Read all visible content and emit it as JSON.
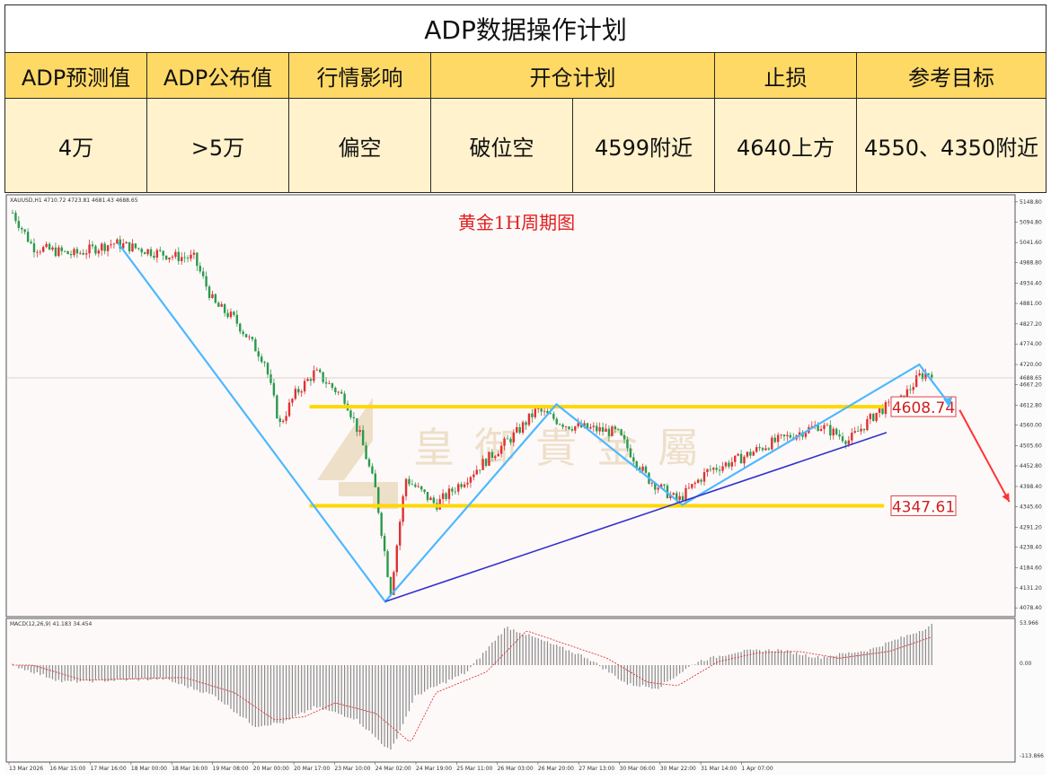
{
  "table": {
    "title": "ADP数据操作计划",
    "headers": [
      "ADP预测值",
      "ADP公布值",
      "行情影响",
      "开仓计划",
      "止损",
      "参考目标"
    ],
    "values": {
      "forecast": "4万",
      "actual": ">5万",
      "impact": "偏空",
      "entry_type": "破位空",
      "entry_price": "4599附近",
      "stop_loss": "4640上方",
      "target": "4550、4350附近"
    }
  },
  "chart_data": {
    "type": "candlestick",
    "symbol_line": "XAUUSD,H1  4710.72 4723.81 4681.43 4688.65",
    "title": "黄金1H周期图",
    "watermark": "皇御貴金屬",
    "current_price_label": "4688.65",
    "y_ticks": [
      "5148.80",
      "5094.80",
      "5041.60",
      "4988.80",
      "4934.40",
      "4881.00",
      "4827.20",
      "4774.00",
      "4720.00",
      "4667.20",
      "4612.80",
      "4560.00",
      "4505.60",
      "4452.80",
      "4398.40",
      "4345.60",
      "4291.20",
      "4238.40",
      "4184.60",
      "4131.20",
      "4078.40"
    ],
    "x_ticks": [
      "13 Mar 2026",
      "16 Mar 15:00",
      "17 Mar 16:00",
      "18 Mar 00:00",
      "18 Mar 16:00",
      "19 Mar 08:00",
      "20 Mar 00:00",
      "20 Mar 17:00",
      "23 Mar 10:00",
      "24 Mar 02:00",
      "24 Mar 19:00",
      "25 Mar 11:00",
      "26 Mar 03:00",
      "26 Mar 20:00",
      "27 Mar 13:00",
      "30 Mar 06:00",
      "30 Mar 22:00",
      "31 Mar 14:00",
      "1 Apr 07:00"
    ],
    "levels": [
      {
        "label": "4608.74",
        "value": 4608.74,
        "color": "#ffd700"
      },
      {
        "label": "4347.61",
        "value": 4347.61,
        "color": "#ffd700"
      }
    ],
    "zigzag": [
      {
        "t": 0.11,
        "price": 5040
      },
      {
        "t": 0.375,
        "price": 4095
      },
      {
        "t": 0.545,
        "price": 4615
      },
      {
        "t": 0.67,
        "price": 4350
      },
      {
        "t": 0.905,
        "price": 4720
      },
      {
        "t": 0.935,
        "price": 4615
      }
    ],
    "trendline": {
      "from": {
        "t": 0.375,
        "price": 4095
      },
      "to": {
        "t": 1.09,
        "price": 4780
      },
      "color": "#3333cc"
    },
    "forecast_arrow": {
      "from": {
        "t": 0.945,
        "price": 4600
      },
      "to": {
        "t": 1.03,
        "price": 4358
      },
      "color": "#ff3333"
    },
    "macd": {
      "label": "MACD(12,26,9) 41.183 34.454",
      "y_ticks": [
        "53.966",
        "0.00",
        "-113.866"
      ]
    }
  }
}
